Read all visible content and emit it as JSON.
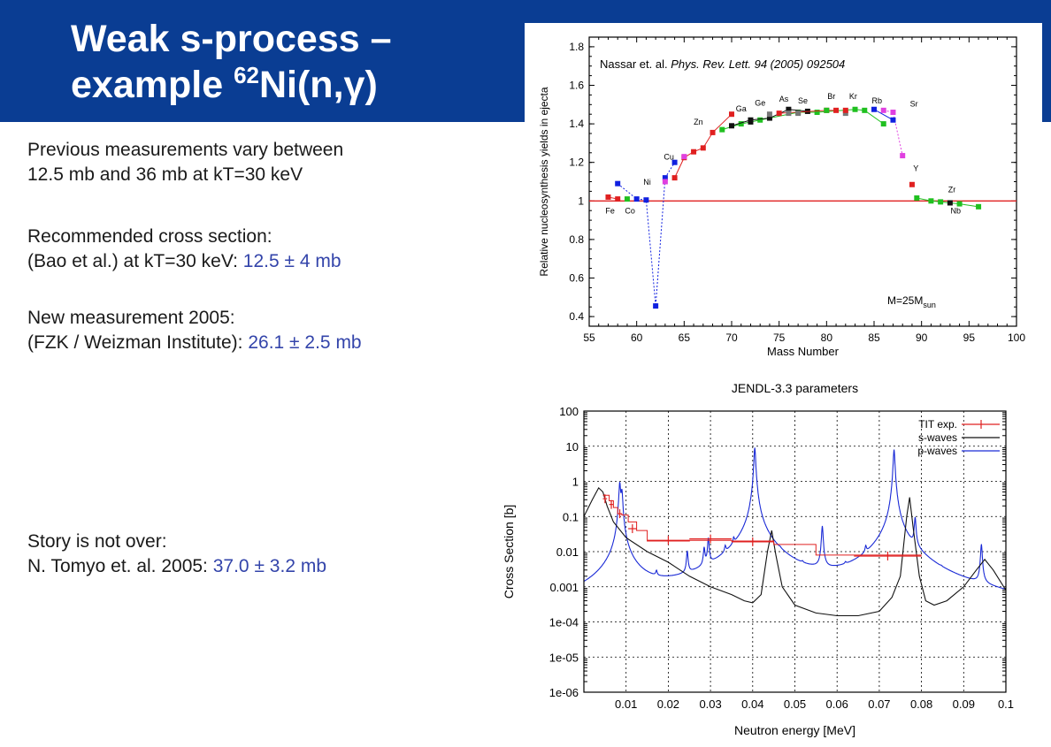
{
  "slide": {
    "title_line1": "Weak s-process –",
    "title_line2_pre": "example ",
    "title_sup": "62",
    "title_line2_post": "Ni(n,",
    "title_gamma": "γ",
    "title_close": ")",
    "colors": {
      "header": "#0a3d93",
      "highlight": "#3344aa"
    }
  },
  "text": {
    "prev_1": "Previous measurements vary between",
    "prev_2": "12.5 mb and 36 mb at kT=30 keV",
    "rec_1": "Recommended cross section:",
    "rec_2_pre": "(Bao et al.) at kT=30 keV: ",
    "rec_2_val": "12.5 ± 4 mb",
    "new_1": "New measurement 2005:",
    "new_2_pre": "(FZK / Weizman Institute): ",
    "new_2_val": "26.1 ± 2.5 mb",
    "story_1": "Story is not over:",
    "story_2_pre": "N. Tomyo et. al. 2005: ",
    "story_2_val": "37.0 ± 3.2 mb"
  },
  "chart_data": [
    {
      "type": "scatter",
      "annotation_pre": "Nassar et. al. ",
      "annotation_italic": "Phys. Rev. Lett. 94 (2005) 092504",
      "xlabel": "Mass Number",
      "ylabel": "Relative nucleosynthesis yields in ejecta",
      "xlim": [
        55,
        100
      ],
      "ylim": [
        0.35,
        1.85
      ],
      "x_ticks": [
        55,
        60,
        65,
        70,
        75,
        80,
        85,
        90,
        95,
        100
      ],
      "y_ticks": [
        0.4,
        0.6,
        0.8,
        1,
        1.2,
        1.4,
        1.6,
        1.8
      ],
      "reference_line": 1,
      "mass_label_pre": "M=25M",
      "mass_label_sub": "sun",
      "series": [
        {
          "color": "#e02020",
          "line": "solid",
          "points": [
            [
              57,
              1.02
            ],
            [
              58,
              1.01
            ]
          ]
        },
        {
          "color": "#1020e0",
          "line": "dotted",
          "points": [
            [
              58,
              1.09
            ],
            [
              60,
              1.01
            ],
            [
              61,
              1.005
            ],
            [
              62,
              0.455
            ],
            [
              63,
              1.12
            ],
            [
              64,
              1.2
            ]
          ]
        },
        {
          "color": "#e02020",
          "line": "solid",
          "points": [
            [
              64,
              1.12
            ],
            [
              65,
              1.225
            ],
            [
              66,
              1.255
            ],
            [
              67,
              1.275
            ],
            [
              68,
              1.355
            ],
            [
              70,
              1.45
            ]
          ]
        },
        {
          "color": "#20c020",
          "line": "solid",
          "points": [
            [
              69,
              1.37
            ],
            [
              71,
              1.4
            ],
            [
              73,
              1.42
            ],
            [
              77,
              1.46
            ],
            [
              79,
              1.46
            ],
            [
              83,
              1.475
            ],
            [
              84,
              1.47
            ],
            [
              86,
              1.4
            ]
          ]
        },
        {
          "color": "#111111",
          "line": "solid",
          "points": [
            [
              70,
              1.39
            ],
            [
              72,
              1.42
            ],
            [
              74,
              1.43
            ],
            [
              76,
              1.475
            ],
            [
              78,
              1.465
            ]
          ]
        },
        {
          "color": "#e02020",
          "line": "solid",
          "points": [
            [
              75,
              1.455
            ],
            [
              80,
              1.47
            ],
            [
              81,
              1.47
            ]
          ]
        },
        {
          "color": "#e040e0",
          "line": "dotted",
          "points": [
            [
              86,
              1.47
            ],
            [
              87,
              1.46
            ],
            [
              88,
              1.235
            ]
          ]
        },
        {
          "color": "#1020e0",
          "line": "solid",
          "points": [
            [
              85,
              1.475
            ],
            [
              87,
              1.42
            ]
          ]
        },
        {
          "color": "#20c020",
          "line": "solid",
          "points": [
            [
              89.5,
              1.015
            ],
            [
              91,
              1.0
            ],
            [
              92,
              0.995
            ],
            [
              94,
              0.985
            ],
            [
              96,
              0.97
            ]
          ]
        }
      ],
      "extra_points": [
        {
          "x": 59,
          "y": 1.01,
          "color": "#20c020"
        },
        {
          "x": 63,
          "y": 1.1,
          "color": "#e040e0"
        },
        {
          "x": 65,
          "y": 1.23,
          "color": "#e040e0"
        },
        {
          "x": 72,
          "y": 1.41,
          "color": "#111111"
        },
        {
          "x": 74,
          "y": 1.45,
          "color": "#777777"
        },
        {
          "x": 76,
          "y": 1.455,
          "color": "#777777"
        },
        {
          "x": 77,
          "y": 1.455,
          "color": "#777777"
        },
        {
          "x": 80,
          "y": 1.47,
          "color": "#20c020"
        },
        {
          "x": 82,
          "y": 1.455,
          "color": "#777777"
        },
        {
          "x": 82,
          "y": 1.47,
          "color": "#e02020"
        },
        {
          "x": 89,
          "y": 1.085,
          "color": "#e02020"
        },
        {
          "x": 93,
          "y": 0.99,
          "color": "#111111"
        }
      ],
      "element_labels": [
        {
          "text": "Fe",
          "x": 57.2,
          "y": 0.935
        },
        {
          "text": "Co",
          "x": 59.3,
          "y": 0.935
        },
        {
          "text": "Ni",
          "x": 61.1,
          "y": 1.085
        },
        {
          "text": "Cu",
          "x": 63.4,
          "y": 1.215
        },
        {
          "text": "Zn",
          "x": 66.5,
          "y": 1.395
        },
        {
          "text": "Ga",
          "x": 71.0,
          "y": 1.465
        },
        {
          "text": "Ge",
          "x": 73.0,
          "y": 1.495
        },
        {
          "text": "As",
          "x": 75.5,
          "y": 1.515
        },
        {
          "text": "Se",
          "x": 77.5,
          "y": 1.505
        },
        {
          "text": "Br",
          "x": 80.5,
          "y": 1.53
        },
        {
          "text": "Kr",
          "x": 82.8,
          "y": 1.53
        },
        {
          "text": "Rb",
          "x": 85.3,
          "y": 1.505
        },
        {
          "text": "Sr",
          "x": 89.2,
          "y": 1.49
        },
        {
          "text": "Y",
          "x": 89.4,
          "y": 1.155
        },
        {
          "text": "Zr",
          "x": 93.2,
          "y": 1.045
        },
        {
          "text": "Nb",
          "x": 93.6,
          "y": 0.935
        }
      ]
    },
    {
      "type": "line",
      "title": "JENDL-3.3 parameters",
      "xlabel": "Neutron energy  [MeV]",
      "ylabel": "Cross Section  [b]",
      "xlim": [
        0,
        0.1
      ],
      "ylog": true,
      "ylim": [
        1e-06,
        100
      ],
      "grid": true,
      "legend_position": "top-right",
      "x_ticks": [
        0.01,
        0.02,
        0.03,
        0.04,
        0.05,
        0.06,
        0.07,
        0.08,
        0.09,
        0.1
      ],
      "x_tick_labels": [
        "0.01",
        "0.02",
        "0.03",
        "0.04",
        "0.05",
        "0.06",
        "0.07",
        "0.08",
        "0.09",
        "0.1"
      ],
      "y_ticks": [
        100,
        10,
        1,
        0.1,
        0.01,
        0.001,
        0.0001,
        1e-05,
        1e-06
      ],
      "y_tick_labels": [
        "100",
        "10",
        "1",
        "0.1",
        "0.01",
        "0.001",
        "1e-04",
        "1e-05",
        "1e-06"
      ],
      "series": [
        {
          "name": "TIT exp.",
          "color": "#e02020",
          "kind": "histogram",
          "steps": [
            [
              0.0045,
              0.4
            ],
            [
              0.006,
              0.28
            ],
            [
              0.007,
              0.18
            ],
            [
              0.008,
              0.12
            ],
            [
              0.009,
              0.11
            ],
            [
              0.0105,
              0.07
            ],
            [
              0.0125,
              0.04
            ],
            [
              0.015,
              0.02
            ],
            [
              0.025,
              0.021
            ],
            [
              0.035,
              0.02
            ],
            [
              0.045,
              0.016
            ],
            [
              0.055,
              0.008
            ],
            [
              0.08,
              0.008
            ]
          ],
          "points": [
            {
              "x": 0.005,
              "y": 0.32,
              "xerr": 0.0005
            },
            {
              "x": 0.0065,
              "y": 0.22,
              "xerr": 0.0005
            },
            {
              "x": 0.0085,
              "y": 0.12,
              "xerr": 0.0005
            },
            {
              "x": 0.0115,
              "y": 0.045,
              "xerr": 0.001
            },
            {
              "x": 0.02,
              "y": 0.021,
              "xerr": 0.005
            },
            {
              "x": 0.03,
              "y": 0.023,
              "xerr": 0.005
            },
            {
              "x": 0.04,
              "y": 0.019,
              "xerr": 0.005
            },
            {
              "x": 0.072,
              "y": 0.0075,
              "xerr": 0.008
            }
          ]
        },
        {
          "name": "s-waves",
          "color": "#111111",
          "kind": "curve",
          "points": [
            [
              0,
              0.1
            ],
            [
              0.002,
              0.3
            ],
            [
              0.0035,
              0.65
            ],
            [
              0.0045,
              0.5
            ],
            [
              0.0055,
              0.2
            ],
            [
              0.007,
              0.07
            ],
            [
              0.01,
              0.025
            ],
            [
              0.015,
              0.01
            ],
            [
              0.02,
              0.005
            ],
            [
              0.025,
              0.002
            ],
            [
              0.03,
              0.001
            ],
            [
              0.035,
              0.0006
            ],
            [
              0.038,
              0.0004
            ],
            [
              0.04,
              0.00035
            ],
            [
              0.042,
              0.0006
            ],
            [
              0.0435,
              0.01
            ],
            [
              0.0445,
              0.04
            ],
            [
              0.0455,
              0.008
            ],
            [
              0.047,
              0.001
            ],
            [
              0.05,
              0.0003
            ],
            [
              0.055,
              0.00018
            ],
            [
              0.06,
              0.00015
            ],
            [
              0.065,
              0.00015
            ],
            [
              0.07,
              0.0002
            ],
            [
              0.073,
              0.0005
            ],
            [
              0.075,
              0.002
            ],
            [
              0.0765,
              0.1
            ],
            [
              0.0772,
              0.35
            ],
            [
              0.078,
              0.05
            ],
            [
              0.0795,
              0.002
            ],
            [
              0.081,
              0.0004
            ],
            [
              0.083,
              0.0003
            ],
            [
              0.086,
              0.0004
            ],
            [
              0.09,
              0.001
            ],
            [
              0.093,
              0.003
            ],
            [
              0.095,
              0.006
            ],
            [
              0.097,
              0.003
            ],
            [
              0.1,
              0.0008
            ]
          ]
        },
        {
          "name": "p-waves",
          "color": "#1a2ad6",
          "kind": "resonances",
          "baseline": 1e-06,
          "resonances": [
            {
              "e": 0.0085,
              "peak": 0.9
            },
            {
              "e": 0.009,
              "peak": 0.5
            },
            {
              "e": 0.0172,
              "peak": 0.0008
            },
            {
              "e": 0.0245,
              "peak": 0.008
            },
            {
              "e": 0.0285,
              "peak": 0.009
            },
            {
              "e": 0.0295,
              "peak": 0.02
            },
            {
              "e": 0.0335,
              "peak": 0.005
            },
            {
              "e": 0.0355,
              "peak": 0.008
            },
            {
              "e": 0.0395,
              "peak": 0.015
            },
            {
              "e": 0.0405,
              "peak": 9.0
            },
            {
              "e": 0.0423,
              "peak": 0.0002
            },
            {
              "e": 0.0465,
              "peak": 0.0008
            },
            {
              "e": 0.0518,
              "peak": 0.0005
            },
            {
              "e": 0.0565,
              "peak": 0.05
            },
            {
              "e": 0.062,
              "peak": 0.0006
            },
            {
              "e": 0.0668,
              "peak": 0.005
            },
            {
              "e": 0.0735,
              "peak": 8.0
            },
            {
              "e": 0.0785,
              "peak": 0.08
            },
            {
              "e": 0.0847,
              "peak": 0.00015
            },
            {
              "e": 0.0942,
              "peak": 0.015
            }
          ]
        }
      ]
    }
  ]
}
